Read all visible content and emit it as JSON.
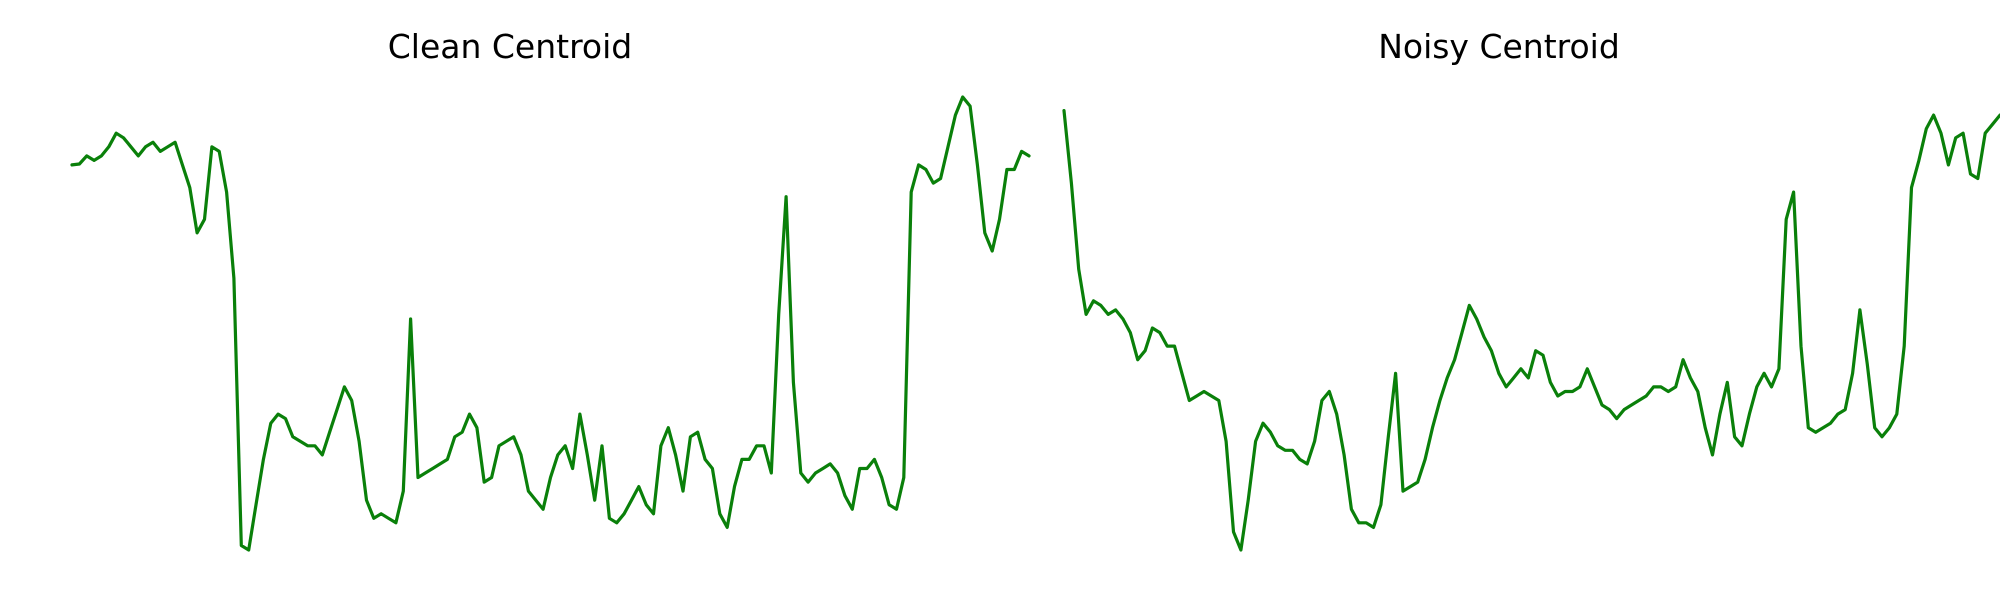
{
  "chart_data": [
    {
      "type": "line",
      "title": "Clean Centroid",
      "xlabel": "",
      "ylabel": "",
      "axes_visible": false,
      "grid": false,
      "color": "#0a800a",
      "x_range": [
        0,
        119
      ],
      "y_range": [
        0,
        1
      ],
      "values": [
        0.85,
        0.852,
        0.87,
        0.86,
        0.87,
        0.89,
        0.92,
        0.91,
        0.89,
        0.87,
        0.89,
        0.9,
        0.88,
        0.89,
        0.9,
        0.85,
        0.8,
        0.7,
        0.73,
        0.89,
        0.88,
        0.79,
        0.6,
        0.01,
        0.0,
        0.1,
        0.2,
        0.28,
        0.3,
        0.29,
        0.25,
        0.24,
        0.23,
        0.23,
        0.21,
        0.26,
        0.31,
        0.36,
        0.33,
        0.24,
        0.11,
        0.07,
        0.08,
        0.07,
        0.06,
        0.13,
        0.51,
        0.16,
        0.17,
        0.18,
        0.19,
        0.2,
        0.25,
        0.26,
        0.3,
        0.27,
        0.15,
        0.16,
        0.23,
        0.24,
        0.25,
        0.21,
        0.13,
        0.11,
        0.09,
        0.16,
        0.21,
        0.23,
        0.18,
        0.3,
        0.21,
        0.11,
        0.23,
        0.07,
        0.06,
        0.08,
        0.11,
        0.14,
        0.1,
        0.08,
        0.23,
        0.27,
        0.21,
        0.13,
        0.25,
        0.26,
        0.2,
        0.18,
        0.08,
        0.05,
        0.14,
        0.2,
        0.2,
        0.23,
        0.23,
        0.17,
        0.52,
        0.78,
        0.37,
        0.17,
        0.15,
        0.17,
        0.18,
        0.19,
        0.17,
        0.12,
        0.09,
        0.18,
        0.18,
        0.2,
        0.16,
        0.1,
        0.09,
        0.16,
        0.79,
        0.85,
        0.84,
        0.81,
        0.82,
        0.89,
        0.96,
        1.0,
        0.98,
        0.85,
        0.7,
        0.66,
        0.73,
        0.84,
        0.84,
        0.88,
        0.87
      ]
    },
    {
      "type": "line",
      "title": "Noisy Centroid",
      "xlabel": "",
      "ylabel": "",
      "axes_visible": false,
      "grid": false,
      "color": "#0a800a",
      "x_range": [
        0,
        119
      ],
      "y_range": [
        0,
        1
      ],
      "values": [
        0.97,
        0.81,
        0.62,
        0.52,
        0.55,
        0.54,
        0.52,
        0.53,
        0.51,
        0.48,
        0.42,
        0.44,
        0.49,
        0.48,
        0.45,
        0.45,
        0.39,
        0.33,
        0.34,
        0.35,
        0.34,
        0.33,
        0.24,
        0.04,
        0.0,
        0.11,
        0.24,
        0.28,
        0.26,
        0.23,
        0.22,
        0.22,
        0.2,
        0.19,
        0.24,
        0.33,
        0.35,
        0.3,
        0.21,
        0.09,
        0.06,
        0.06,
        0.05,
        0.1,
        0.25,
        0.39,
        0.13,
        0.14,
        0.15,
        0.2,
        0.27,
        0.33,
        0.38,
        0.42,
        0.48,
        0.54,
        0.51,
        0.47,
        0.44,
        0.39,
        0.36,
        0.38,
        0.4,
        0.38,
        0.44,
        0.43,
        0.37,
        0.34,
        0.35,
        0.35,
        0.36,
        0.4,
        0.36,
        0.32,
        0.31,
        0.29,
        0.31,
        0.32,
        0.33,
        0.34,
        0.36,
        0.36,
        0.35,
        0.36,
        0.42,
        0.38,
        0.35,
        0.27,
        0.21,
        0.3,
        0.37,
        0.25,
        0.23,
        0.3,
        0.36,
        0.39,
        0.36,
        0.4,
        0.73,
        0.79,
        0.45,
        0.27,
        0.26,
        0.27,
        0.28,
        0.3,
        0.31,
        0.39,
        0.53,
        0.41,
        0.27,
        0.25,
        0.27,
        0.3,
        0.45,
        0.8,
        0.86,
        0.93,
        0.96,
        0.92,
        0.85,
        0.91,
        0.92,
        0.83,
        0.82,
        0.92,
        0.94,
        0.96,
        0.97,
        1.0,
        0.96,
        0.93,
        0.94,
        0.95,
        0.94,
        0.93
      ]
    }
  ]
}
